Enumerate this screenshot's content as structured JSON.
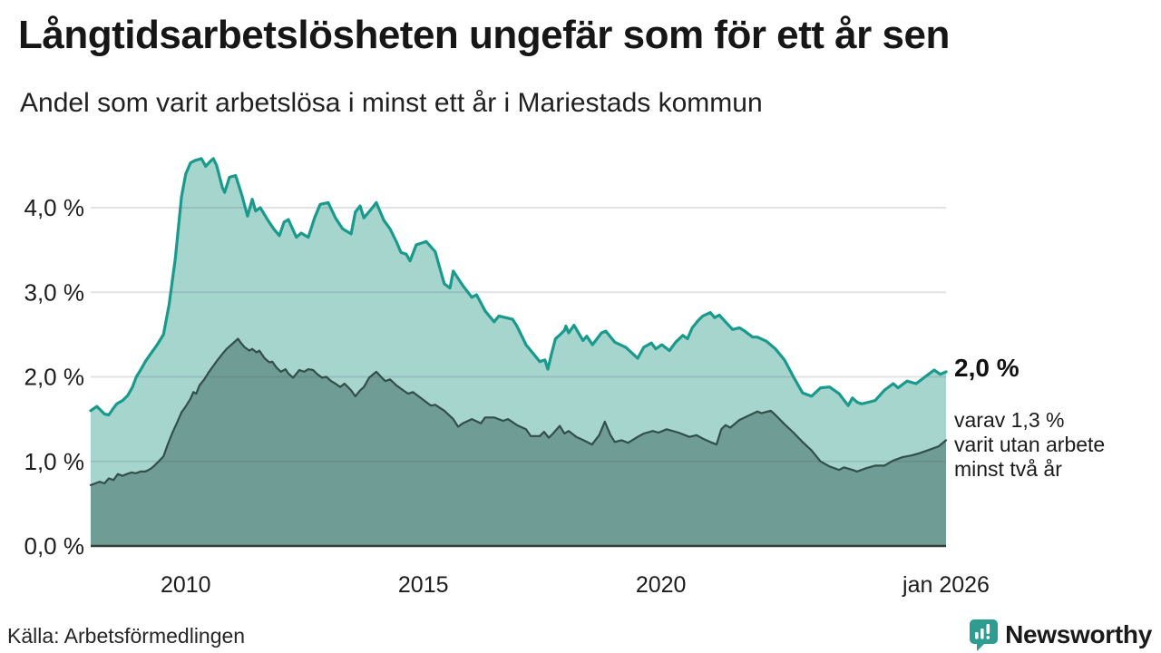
{
  "header": {
    "title": "Långtidsarbetslösheten ungefär som för ett år sen",
    "subtitle": "Andel som varit arbetslösa i minst ett år i Mariestads kommun"
  },
  "annotations": {
    "end_value_total": "2,0 %",
    "end_note_line1": "varav 1,3 %",
    "end_note_line2": "varit utan arbete",
    "end_note_line3": "minst två år"
  },
  "footer": {
    "source": "Källa: Arbetsförmedlingen",
    "brand_name": "Newsworthy",
    "brand_color": "#2e9c90"
  },
  "colors": {
    "series1_line": "#199a8c",
    "series1_fill": "#a6d5ce",
    "series2_line": "#324f49",
    "series2_fill": "#6f9c95",
    "gridline": "rgba(70,80,100,0.16)",
    "axis": "#333b39",
    "text": "#1a1a1a"
  },
  "chart_data": {
    "type": "area",
    "title": "Långtidsarbetslösheten ungefär som för ett år sen",
    "subtitle": "Andel som varit arbetslösa i minst ett år i Mariestads kommun",
    "unit": "%",
    "grid": true,
    "x_axis": {
      "min": 2008.0,
      "max": 2026.0,
      "ticks": [
        {
          "t": 2010,
          "label": "2010"
        },
        {
          "t": 2015,
          "label": "2015"
        },
        {
          "t": 2020,
          "label": "2020"
        },
        {
          "t": 2026,
          "label": "jan 2026"
        }
      ]
    },
    "y_axis": {
      "min": 0,
      "max": 4.7,
      "ticks": [
        {
          "v": 0,
          "label": "0,0 %"
        },
        {
          "v": 1,
          "label": "1,0 %"
        },
        {
          "v": 2,
          "label": "2,0 %"
        },
        {
          "v": 3,
          "label": "3,0 %"
        },
        {
          "v": 4,
          "label": "4,0 %"
        }
      ]
    },
    "series": [
      {
        "name": "Andel arbetslösa minst ett år",
        "end_value": "2,0 %",
        "points": [
          [
            2008.0,
            1.6
          ],
          [
            2008.13,
            1.65
          ],
          [
            2008.29,
            1.56
          ],
          [
            2008.38,
            1.55
          ],
          [
            2008.48,
            1.63
          ],
          [
            2008.55,
            1.68
          ],
          [
            2008.67,
            1.72
          ],
          [
            2008.78,
            1.78
          ],
          [
            2008.88,
            1.88
          ],
          [
            2008.96,
            2.0
          ],
          [
            2009.05,
            2.08
          ],
          [
            2009.15,
            2.18
          ],
          [
            2009.26,
            2.27
          ],
          [
            2009.4,
            2.38
          ],
          [
            2009.53,
            2.5
          ],
          [
            2009.65,
            2.85
          ],
          [
            2009.78,
            3.4
          ],
          [
            2009.91,
            4.13
          ],
          [
            2010.0,
            4.4
          ],
          [
            2010.1,
            4.53
          ],
          [
            2010.2,
            4.56
          ],
          [
            2010.33,
            4.58
          ],
          [
            2010.42,
            4.49
          ],
          [
            2010.52,
            4.55
          ],
          [
            2010.58,
            4.58
          ],
          [
            2010.65,
            4.5
          ],
          [
            2010.77,
            4.24
          ],
          [
            2010.82,
            4.18
          ],
          [
            2010.92,
            4.36
          ],
          [
            2011.05,
            4.38
          ],
          [
            2011.18,
            4.15
          ],
          [
            2011.3,
            3.9
          ],
          [
            2011.4,
            4.1
          ],
          [
            2011.47,
            3.96
          ],
          [
            2011.57,
            4.0
          ],
          [
            2011.72,
            3.86
          ],
          [
            2011.85,
            3.75
          ],
          [
            2011.97,
            3.67
          ],
          [
            2012.07,
            3.83
          ],
          [
            2012.16,
            3.86
          ],
          [
            2012.33,
            3.65
          ],
          [
            2012.43,
            3.7
          ],
          [
            2012.58,
            3.65
          ],
          [
            2012.71,
            3.88
          ],
          [
            2012.83,
            4.04
          ],
          [
            2013.0,
            4.06
          ],
          [
            2013.15,
            3.88
          ],
          [
            2013.3,
            3.75
          ],
          [
            2013.48,
            3.69
          ],
          [
            2013.57,
            3.95
          ],
          [
            2013.67,
            4.02
          ],
          [
            2013.75,
            3.88
          ],
          [
            2013.9,
            3.98
          ],
          [
            2014.01,
            4.06
          ],
          [
            2014.17,
            3.85
          ],
          [
            2014.3,
            3.75
          ],
          [
            2014.43,
            3.6
          ],
          [
            2014.53,
            3.47
          ],
          [
            2014.64,
            3.45
          ],
          [
            2014.72,
            3.37
          ],
          [
            2014.85,
            3.56
          ],
          [
            2014.95,
            3.58
          ],
          [
            2015.06,
            3.6
          ],
          [
            2015.25,
            3.48
          ],
          [
            2015.44,
            3.1
          ],
          [
            2015.56,
            3.05
          ],
          [
            2015.63,
            3.25
          ],
          [
            2015.83,
            3.08
          ],
          [
            2016.02,
            2.94
          ],
          [
            2016.12,
            2.97
          ],
          [
            2016.3,
            2.78
          ],
          [
            2016.49,
            2.65
          ],
          [
            2016.59,
            2.72
          ],
          [
            2016.73,
            2.7
          ],
          [
            2016.88,
            2.68
          ],
          [
            2016.97,
            2.6
          ],
          [
            2017.16,
            2.38
          ],
          [
            2017.35,
            2.25
          ],
          [
            2017.45,
            2.18
          ],
          [
            2017.56,
            2.2
          ],
          [
            2017.62,
            2.09
          ],
          [
            2017.7,
            2.28
          ],
          [
            2017.78,
            2.45
          ],
          [
            2017.88,
            2.5
          ],
          [
            2017.97,
            2.55
          ],
          [
            2018.0,
            2.6
          ],
          [
            2018.06,
            2.52
          ],
          [
            2018.17,
            2.61
          ],
          [
            2018.36,
            2.43
          ],
          [
            2018.44,
            2.48
          ],
          [
            2018.56,
            2.38
          ],
          [
            2018.75,
            2.52
          ],
          [
            2018.84,
            2.54
          ],
          [
            2019.03,
            2.41
          ],
          [
            2019.26,
            2.35
          ],
          [
            2019.51,
            2.22
          ],
          [
            2019.64,
            2.35
          ],
          [
            2019.8,
            2.4
          ],
          [
            2019.89,
            2.33
          ],
          [
            2020.02,
            2.38
          ],
          [
            2020.18,
            2.31
          ],
          [
            2020.31,
            2.41
          ],
          [
            2020.46,
            2.49
          ],
          [
            2020.56,
            2.45
          ],
          [
            2020.66,
            2.58
          ],
          [
            2020.79,
            2.67
          ],
          [
            2020.88,
            2.72
          ],
          [
            2021.04,
            2.76
          ],
          [
            2021.13,
            2.7
          ],
          [
            2021.23,
            2.73
          ],
          [
            2021.36,
            2.65
          ],
          [
            2021.51,
            2.56
          ],
          [
            2021.65,
            2.58
          ],
          [
            2021.74,
            2.55
          ],
          [
            2021.93,
            2.47
          ],
          [
            2022.03,
            2.47
          ],
          [
            2022.22,
            2.42
          ],
          [
            2022.41,
            2.33
          ],
          [
            2022.6,
            2.2
          ],
          [
            2022.79,
            2.0
          ],
          [
            2022.98,
            1.81
          ],
          [
            2023.17,
            1.77
          ],
          [
            2023.36,
            1.87
          ],
          [
            2023.55,
            1.88
          ],
          [
            2023.75,
            1.8
          ],
          [
            2023.94,
            1.66
          ],
          [
            2024.03,
            1.75
          ],
          [
            2024.13,
            1.7
          ],
          [
            2024.22,
            1.68
          ],
          [
            2024.37,
            1.7
          ],
          [
            2024.51,
            1.72
          ],
          [
            2024.7,
            1.84
          ],
          [
            2024.89,
            1.92
          ],
          [
            2024.99,
            1.87
          ],
          [
            2025.18,
            1.95
          ],
          [
            2025.37,
            1.92
          ],
          [
            2025.56,
            2.0
          ],
          [
            2025.75,
            2.08
          ],
          [
            2025.88,
            2.03
          ],
          [
            2026.0,
            2.06
          ]
        ]
      },
      {
        "name": "varav varit utan arbete minst två år",
        "end_value": "1,3 %",
        "points": [
          [
            2008.0,
            0.72
          ],
          [
            2008.19,
            0.76
          ],
          [
            2008.29,
            0.74
          ],
          [
            2008.38,
            0.8
          ],
          [
            2008.48,
            0.78
          ],
          [
            2008.57,
            0.85
          ],
          [
            2008.67,
            0.83
          ],
          [
            2008.76,
            0.85
          ],
          [
            2008.86,
            0.87
          ],
          [
            2008.95,
            0.86
          ],
          [
            2009.05,
            0.88
          ],
          [
            2009.15,
            0.88
          ],
          [
            2009.22,
            0.9
          ],
          [
            2009.28,
            0.92
          ],
          [
            2009.34,
            0.95
          ],
          [
            2009.43,
            1.0
          ],
          [
            2009.53,
            1.06
          ],
          [
            2009.62,
            1.2
          ],
          [
            2009.72,
            1.34
          ],
          [
            2009.81,
            1.45
          ],
          [
            2009.91,
            1.58
          ],
          [
            2010.0,
            1.65
          ],
          [
            2010.1,
            1.74
          ],
          [
            2010.16,
            1.82
          ],
          [
            2010.22,
            1.8
          ],
          [
            2010.29,
            1.9
          ],
          [
            2010.39,
            1.97
          ],
          [
            2010.48,
            2.05
          ],
          [
            2010.58,
            2.13
          ],
          [
            2010.67,
            2.2
          ],
          [
            2010.77,
            2.27
          ],
          [
            2010.86,
            2.33
          ],
          [
            2010.96,
            2.38
          ],
          [
            2011.1,
            2.45
          ],
          [
            2011.15,
            2.41
          ],
          [
            2011.24,
            2.35
          ],
          [
            2011.34,
            2.31
          ],
          [
            2011.4,
            2.33
          ],
          [
            2011.49,
            2.29
          ],
          [
            2011.55,
            2.31
          ],
          [
            2011.66,
            2.22
          ],
          [
            2011.76,
            2.17
          ],
          [
            2011.82,
            2.18
          ],
          [
            2011.91,
            2.11
          ],
          [
            2012.0,
            2.06
          ],
          [
            2012.1,
            2.09
          ],
          [
            2012.16,
            2.04
          ],
          [
            2012.26,
            1.99
          ],
          [
            2012.39,
            2.08
          ],
          [
            2012.49,
            2.06
          ],
          [
            2012.58,
            2.09
          ],
          [
            2012.68,
            2.08
          ],
          [
            2012.77,
            2.03
          ],
          [
            2012.87,
            1.99
          ],
          [
            2012.96,
            2.0
          ],
          [
            2013.06,
            1.95
          ],
          [
            2013.15,
            1.92
          ],
          [
            2013.25,
            1.88
          ],
          [
            2013.34,
            1.92
          ],
          [
            2013.48,
            1.84
          ],
          [
            2013.57,
            1.77
          ],
          [
            2013.67,
            1.84
          ],
          [
            2013.75,
            1.88
          ],
          [
            2013.86,
            1.99
          ],
          [
            2014.01,
            2.06
          ],
          [
            2014.11,
            2.0
          ],
          [
            2014.2,
            1.95
          ],
          [
            2014.3,
            1.97
          ],
          [
            2014.43,
            1.9
          ],
          [
            2014.53,
            1.86
          ],
          [
            2014.68,
            1.8
          ],
          [
            2014.78,
            1.82
          ],
          [
            2014.97,
            1.74
          ],
          [
            2015.16,
            1.66
          ],
          [
            2015.25,
            1.67
          ],
          [
            2015.44,
            1.6
          ],
          [
            2015.63,
            1.5
          ],
          [
            2015.73,
            1.41
          ],
          [
            2015.83,
            1.45
          ],
          [
            2016.02,
            1.5
          ],
          [
            2016.21,
            1.45
          ],
          [
            2016.3,
            1.52
          ],
          [
            2016.49,
            1.52
          ],
          [
            2016.68,
            1.48
          ],
          [
            2016.78,
            1.5
          ],
          [
            2016.97,
            1.43
          ],
          [
            2017.16,
            1.38
          ],
          [
            2017.26,
            1.3
          ],
          [
            2017.45,
            1.3
          ],
          [
            2017.54,
            1.35
          ],
          [
            2017.64,
            1.28
          ],
          [
            2017.73,
            1.33
          ],
          [
            2017.87,
            1.42
          ],
          [
            2017.97,
            1.33
          ],
          [
            2018.06,
            1.36
          ],
          [
            2018.22,
            1.29
          ],
          [
            2018.37,
            1.25
          ],
          [
            2018.55,
            1.2
          ],
          [
            2018.7,
            1.31
          ],
          [
            2018.82,
            1.47
          ],
          [
            2018.94,
            1.31
          ],
          [
            2019.03,
            1.23
          ],
          [
            2019.17,
            1.25
          ],
          [
            2019.31,
            1.22
          ],
          [
            2019.51,
            1.29
          ],
          [
            2019.64,
            1.33
          ],
          [
            2019.83,
            1.36
          ],
          [
            2019.95,
            1.34
          ],
          [
            2020.12,
            1.38
          ],
          [
            2020.37,
            1.34
          ],
          [
            2020.6,
            1.29
          ],
          [
            2020.75,
            1.31
          ],
          [
            2020.88,
            1.27
          ],
          [
            2021.08,
            1.22
          ],
          [
            2021.17,
            1.2
          ],
          [
            2021.27,
            1.38
          ],
          [
            2021.36,
            1.43
          ],
          [
            2021.46,
            1.4
          ],
          [
            2021.65,
            1.49
          ],
          [
            2021.84,
            1.54
          ],
          [
            2022.03,
            1.59
          ],
          [
            2022.12,
            1.57
          ],
          [
            2022.31,
            1.6
          ],
          [
            2022.41,
            1.55
          ],
          [
            2022.6,
            1.44
          ],
          [
            2022.79,
            1.34
          ],
          [
            2022.98,
            1.23
          ],
          [
            2023.17,
            1.13
          ],
          [
            2023.36,
            1.0
          ],
          [
            2023.55,
            0.94
          ],
          [
            2023.75,
            0.9
          ],
          [
            2023.85,
            0.93
          ],
          [
            2024.03,
            0.9
          ],
          [
            2024.13,
            0.88
          ],
          [
            2024.32,
            0.92
          ],
          [
            2024.51,
            0.95
          ],
          [
            2024.7,
            0.95
          ],
          [
            2024.89,
            1.01
          ],
          [
            2025.08,
            1.05
          ],
          [
            2025.27,
            1.07
          ],
          [
            2025.46,
            1.1
          ],
          [
            2025.66,
            1.14
          ],
          [
            2025.85,
            1.18
          ],
          [
            2026.0,
            1.25
          ]
        ]
      }
    ]
  }
}
